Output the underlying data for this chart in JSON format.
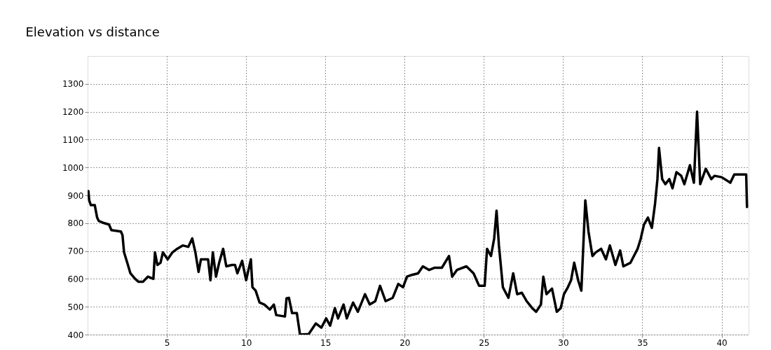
{
  "chart_data": {
    "type": "line",
    "title": "Elevation vs distance",
    "x": [
      0.05,
      0.1,
      0.2,
      0.45,
      0.6,
      0.7,
      1.05,
      1.35,
      1.5,
      2.1,
      2.2,
      2.3,
      2.5,
      2.7,
      3.0,
      3.2,
      3.5,
      3.8,
      4.15,
      4.25,
      4.4,
      4.6,
      4.75,
      5.05,
      5.35,
      5.65,
      6.0,
      6.35,
      6.6,
      6.8,
      7.0,
      7.15,
      7.6,
      7.75,
      7.9,
      8.1,
      8.3,
      8.55,
      8.75,
      9.1,
      9.3,
      9.45,
      9.75,
      10.0,
      10.1,
      10.3,
      10.4,
      10.6,
      10.85,
      11.15,
      11.5,
      11.75,
      11.9,
      12.45,
      12.55,
      12.7,
      12.9,
      13.2,
      13.4,
      13.95,
      14.4,
      14.75,
      15.05,
      15.3,
      15.6,
      15.8,
      16.15,
      16.35,
      16.75,
      17.05,
      17.5,
      17.8,
      18.15,
      18.45,
      18.8,
      19.25,
      19.6,
      19.9,
      20.15,
      20.5,
      20.85,
      21.15,
      21.55,
      21.9,
      22.35,
      22.8,
      23.0,
      23.3,
      23.9,
      24.35,
      24.7,
      25.05,
      25.2,
      25.45,
      25.65,
      25.8,
      25.95,
      26.2,
      26.55,
      26.85,
      27.1,
      27.4,
      27.7,
      28.05,
      28.3,
      28.6,
      28.75,
      28.95,
      29.3,
      29.6,
      29.85,
      30.05,
      30.3,
      30.5,
      30.7,
      30.95,
      31.15,
      31.4,
      31.6,
      31.85,
      32.05,
      32.4,
      32.7,
      32.95,
      33.3,
      33.6,
      33.8,
      34.25,
      34.7,
      34.9,
      35.1,
      35.35,
      35.6,
      35.8,
      35.95,
      36.05,
      36.25,
      36.45,
      36.7,
      36.9,
      37.15,
      37.45,
      37.65,
      38.0,
      38.25,
      38.45,
      38.65,
      39.0,
      39.35,
      39.55,
      40.0,
      40.55,
      40.8,
      41.55,
      41.6
    ],
    "values": [
      915,
      882,
      865,
      865,
      820,
      808,
      800,
      795,
      775,
      770,
      757,
      695,
      658,
      620,
      600,
      590,
      590,
      608,
      600,
      695,
      650,
      658,
      695,
      670,
      695,
      708,
      720,
      715,
      745,
      695,
      625,
      670,
      670,
      595,
      695,
      608,
      658,
      708,
      645,
      650,
      650,
      620,
      665,
      595,
      620,
      670,
      570,
      558,
      515,
      508,
      490,
      508,
      470,
      465,
      530,
      532,
      477,
      477,
      400,
      402,
      440,
      425,
      458,
      432,
      495,
      458,
      508,
      458,
      515,
      482,
      545,
      508,
      520,
      575,
      520,
      532,
      582,
      570,
      608,
      615,
      620,
      645,
      632,
      640,
      640,
      682,
      608,
      632,
      645,
      620,
      575,
      575,
      708,
      682,
      745,
      845,
      720,
      570,
      532,
      620,
      545,
      550,
      520,
      495,
      482,
      508,
      608,
      545,
      565,
      482,
      495,
      545,
      570,
      595,
      658,
      595,
      558,
      882,
      770,
      682,
      695,
      708,
      670,
      720,
      650,
      702,
      645,
      658,
      708,
      745,
      795,
      820,
      783,
      870,
      958,
      1070,
      958,
      940,
      958,
      925,
      983,
      970,
      940,
      1008,
      945,
      1200,
      940,
      995,
      958,
      970,
      965,
      945,
      975,
      975,
      858
    ],
    "color": "#000000",
    "xlim": [
      0,
      41.7
    ],
    "ylim": [
      400,
      1400
    ],
    "xticks": [
      5,
      10,
      15,
      20,
      25,
      30,
      35,
      40
    ],
    "yticks": [
      400,
      500,
      600,
      700,
      800,
      900,
      1000,
      1100,
      1200,
      1300
    ],
    "grid": true,
    "marker": "none",
    "line_style": "solid"
  }
}
